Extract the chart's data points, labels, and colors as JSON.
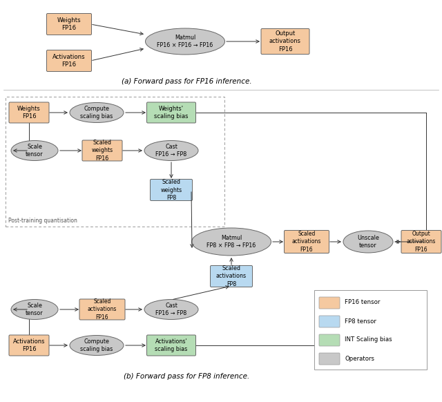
{
  "fig_width": 6.4,
  "fig_height": 5.82,
  "bg_color": "#ffffff",
  "fp16_color": "#f5c9a0",
  "fp8_color": "#b8d9f0",
  "int_color": "#b5ddb5",
  "op_color": "#c8c8c8",
  "caption_a": "(a) Forward pass for FP16 inference.",
  "caption_b": "(b) Forward pass for FP8 inference.",
  "legend_labels": [
    "FP16 tensor",
    "FP8 tensor",
    "INT Scaling bias",
    "Operators"
  ],
  "legend_colors": [
    "#f5c9a0",
    "#b8d9f0",
    "#b5ddb5",
    "#c8c8c8"
  ]
}
